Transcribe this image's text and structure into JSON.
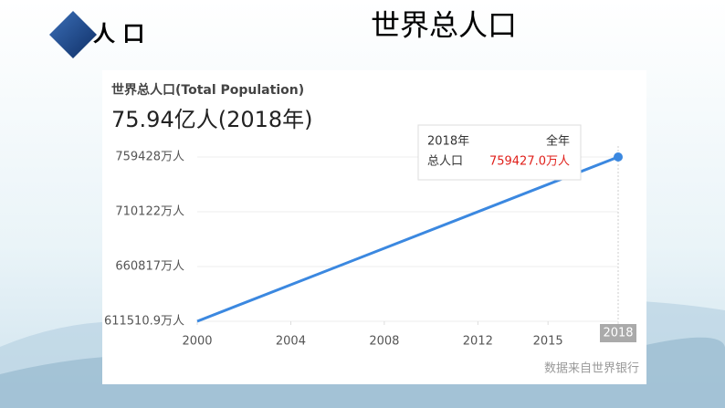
{
  "slide": {
    "section": "人 口",
    "title": "世界总人口"
  },
  "chart_data": {
    "type": "line",
    "title": "世界总人口(Total Population)",
    "subtitle": "75.94亿人(2018年)",
    "x": [
      2000,
      2018
    ],
    "series": [
      {
        "name": "总人口",
        "color": "#3b88e0",
        "values": [
          611510.9,
          759427
        ],
        "value_labels": [
          null,
          "759427.0万人"
        ]
      }
    ],
    "xlim": [
      2000,
      2018
    ],
    "xticks": [
      2000,
      2004,
      2008,
      2012,
      2015,
      2018
    ],
    "ylim": [
      611510.9,
      759428
    ],
    "yticks": [
      {
        "value": 611510.9,
        "label": "611510.9万人"
      },
      {
        "value": 660817,
        "label": "660817万人"
      },
      {
        "value": 710122,
        "label": "710122万人"
      },
      {
        "value": 759428,
        "label": "759428万人"
      }
    ],
    "grid": true,
    "tooltip": {
      "title": "2018年",
      "period": "全年"
    },
    "source": "数据来自世界银行"
  }
}
